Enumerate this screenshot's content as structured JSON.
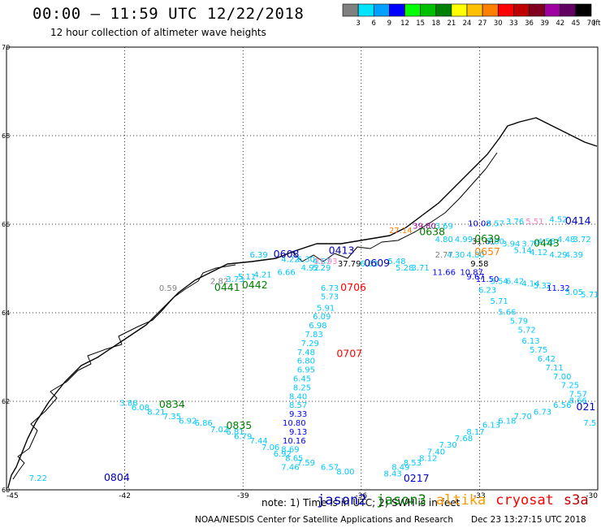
{
  "header": {
    "title": "00:00 — 11:59 UTC 12/22/2018",
    "subtitle": "12 hour collection of altimeter wave heights"
  },
  "colorbar": {
    "unit": "(ft)",
    "bins": [
      {
        "label": "3",
        "color": "#808080"
      },
      {
        "label": "6",
        "color": "#00e5ff"
      },
      {
        "label": "9",
        "color": "#00a0ff"
      },
      {
        "label": "12",
        "color": "#0000ff"
      },
      {
        "label": "15",
        "color": "#00ff00"
      },
      {
        "label": "18",
        "color": "#00c000"
      },
      {
        "label": "21",
        "color": "#008000"
      },
      {
        "label": "24",
        "color": "#ffff00"
      },
      {
        "label": "27",
        "color": "#ffc000"
      },
      {
        "label": "30",
        "color": "#ff8000"
      },
      {
        "label": "33",
        "color": "#ff0000"
      },
      {
        "label": "36",
        "color": "#c00000"
      },
      {
        "label": "39",
        "color": "#800020"
      },
      {
        "label": "42",
        "color": "#a000a0"
      },
      {
        "label": "45",
        "color": "#600060"
      },
      {
        "label": "70",
        "color": "#000000"
      }
    ]
  },
  "chart_data": {
    "type": "scatter",
    "title": "00:00 — 11:59 UTC 12/22/2018",
    "subtitle": "12 hour collection of altimeter wave heights",
    "xlim": [
      -45,
      -30
    ],
    "ylim": [
      60,
      70
    ],
    "x_ticks": [
      "-45",
      "-42",
      "-39",
      "-36",
      "-33",
      "-30"
    ],
    "y_ticks": [
      "60",
      "62",
      "64",
      "66",
      "68",
      "70"
    ],
    "grid": true,
    "points": [
      {
        "text": "7.22",
        "lon": -44.2,
        "lat": 60.2,
        "color": "#00c8ff"
      },
      {
        "text": "3.86",
        "lon": -41.9,
        "lat": 61.9,
        "color": "#00c8ff"
      },
      {
        "text": "6.08",
        "lon": -41.6,
        "lat": 61.8,
        "color": "#00c8ff"
      },
      {
        "text": "8.21",
        "lon": -41.2,
        "lat": 61.7,
        "color": "#00c8ff"
      },
      {
        "text": "7.35",
        "lon": -40.8,
        "lat": 61.6,
        "color": "#00c8ff"
      },
      {
        "text": "6.92",
        "lon": -40.4,
        "lat": 61.5,
        "color": "#00c8ff"
      },
      {
        "text": "6.86",
        "lon": -40.0,
        "lat": 61.45,
        "color": "#00c8ff"
      },
      {
        "text": "7.02",
        "lon": -39.6,
        "lat": 61.3,
        "color": "#00c8ff"
      },
      {
        "text": "6.81",
        "lon": -39.2,
        "lat": 61.25,
        "color": "#00c8ff"
      },
      {
        "text": "6.79",
        "lon": -39.0,
        "lat": 61.15,
        "color": "#00c8ff"
      },
      {
        "text": "7.44",
        "lon": -38.6,
        "lat": 61.05,
        "color": "#00c8ff"
      },
      {
        "text": "7.06",
        "lon": -38.3,
        "lat": 60.9,
        "color": "#00c8ff"
      },
      {
        "text": "6.92",
        "lon": -38.0,
        "lat": 60.75,
        "color": "#00c8ff"
      },
      {
        "text": "8.65",
        "lon": -37.7,
        "lat": 60.65,
        "color": "#00c8ff"
      },
      {
        "text": "7.59",
        "lon": -37.4,
        "lat": 60.55,
        "color": "#00c8ff"
      },
      {
        "text": "7.46",
        "lon": -37.8,
        "lat": 60.45,
        "color": "#00c8ff"
      },
      {
        "text": "6.57",
        "lon": -36.8,
        "lat": 60.45,
        "color": "#00c8ff"
      },
      {
        "text": "8.00",
        "lon": -36.4,
        "lat": 60.35,
        "color": "#00c8ff"
      },
      {
        "text": "6.39",
        "lon": -38.6,
        "lat": 65.25,
        "color": "#00c8ff"
      },
      {
        "text": "6.73",
        "lon": -36.8,
        "lat": 64.5,
        "color": "#00c8ff"
      },
      {
        "text": "5.73",
        "lon": -36.8,
        "lat": 64.3,
        "color": "#00c8ff"
      },
      {
        "text": "5.91",
        "lon": -36.9,
        "lat": 64.05,
        "color": "#00c8ff"
      },
      {
        "text": "6.09",
        "lon": -37.0,
        "lat": 63.85,
        "color": "#00c8ff"
      },
      {
        "text": "6.98",
        "lon": -37.1,
        "lat": 63.65,
        "color": "#00c8ff"
      },
      {
        "text": "7.83",
        "lon": -37.2,
        "lat": 63.45,
        "color": "#00c8ff"
      },
      {
        "text": "7.29",
        "lon": -37.3,
        "lat": 63.25,
        "color": "#00c8ff"
      },
      {
        "text": "7.48",
        "lon": -37.4,
        "lat": 63.05,
        "color": "#00c8ff"
      },
      {
        "text": "6.80",
        "lon": -37.4,
        "lat": 62.85,
        "color": "#00c8ff"
      },
      {
        "text": "6.95",
        "lon": -37.4,
        "lat": 62.65,
        "color": "#00c8ff"
      },
      {
        "text": "6.45",
        "lon": -37.5,
        "lat": 62.45,
        "color": "#00c8ff"
      },
      {
        "text": "8.25",
        "lon": -37.5,
        "lat": 62.25,
        "color": "#00c8ff"
      },
      {
        "text": "8.40",
        "lon": -37.6,
        "lat": 62.05,
        "color": "#00c8ff"
      },
      {
        "text": "8.57",
        "lon": -37.6,
        "lat": 61.85,
        "color": "#00c8ff"
      },
      {
        "text": "9.33",
        "lon": -37.6,
        "lat": 61.65,
        "color": "#0000ff"
      },
      {
        "text": "10.80",
        "lon": -37.7,
        "lat": 61.45,
        "color": "#0000ff"
      },
      {
        "text": "9.13",
        "lon": -37.6,
        "lat": 61.25,
        "color": "#0000ff"
      },
      {
        "text": "10.16",
        "lon": -37.7,
        "lat": 61.05,
        "color": "#0000ff"
      },
      {
        "text": "8.69",
        "lon": -37.8,
        "lat": 60.85,
        "color": "#00c8ff"
      },
      {
        "text": "4.22",
        "lon": -37.8,
        "lat": 65.15,
        "color": "#00c8ff"
      },
      {
        "text": "6.30",
        "lon": -37.4,
        "lat": 65.15,
        "color": "#00c8ff"
      },
      {
        "text": "4.67",
        "lon": -37.0,
        "lat": 65.1,
        "color": "#00c8ff"
      },
      {
        "text": "6.66",
        "lon": -37.9,
        "lat": 64.85,
        "color": "#00c8ff"
      },
      {
        "text": "4.21",
        "lon": -38.5,
        "lat": 64.8,
        "color": "#00c8ff"
      },
      {
        "text": "5.11",
        "lon": -38.9,
        "lat": 64.75,
        "color": "#00c8ff"
      },
      {
        "text": "3.73",
        "lon": -39.2,
        "lat": 64.7,
        "color": "#00c8ff"
      },
      {
        "text": "2.82",
        "lon": -39.6,
        "lat": 64.65,
        "color": "#808080"
      },
      {
        "text": "0.59",
        "lon": -40.9,
        "lat": 64.5,
        "color": "#808080"
      },
      {
        "text": "4.92",
        "lon": -37.3,
        "lat": 64.95,
        "color": "#00c8ff"
      },
      {
        "text": "5.29",
        "lon": -37.0,
        "lat": 64.95,
        "color": "#00c8ff"
      },
      {
        "text": "31.93",
        "lon": -36.9,
        "lat": 65.1,
        "color": "#ff80c0"
      },
      {
        "text": "37.79",
        "lon": -36.3,
        "lat": 65.05,
        "color": "#000000"
      },
      {
        "text": "6.63",
        "lon": -35.8,
        "lat": 65.05,
        "color": "#00c8ff"
      },
      {
        "text": "5.48",
        "lon": -35.1,
        "lat": 65.1,
        "color": "#00c8ff"
      },
      {
        "text": "5.28",
        "lon": -34.9,
        "lat": 64.95,
        "color": "#00c8ff"
      },
      {
        "text": "3.71",
        "lon": -34.5,
        "lat": 64.95,
        "color": "#00c8ff"
      },
      {
        "text": "27.14",
        "lon": -35.0,
        "lat": 65.8,
        "color": "#ff8000"
      },
      {
        "text": "39.80",
        "lon": -34.4,
        "lat": 65.9,
        "color": "#a000a0"
      },
      {
        "text": "3.69",
        "lon": -33.9,
        "lat": 65.9,
        "color": "#00c8ff"
      },
      {
        "text": "10.08",
        "lon": -33.0,
        "lat": 65.95,
        "color": "#0000ff"
      },
      {
        "text": "5.57",
        "lon": -32.6,
        "lat": 65.95,
        "color": "#00c8ff"
      },
      {
        "text": "3.76",
        "lon": -32.1,
        "lat": 66.0,
        "color": "#00c8ff"
      },
      {
        "text": "5.51",
        "lon": -31.6,
        "lat": 66.0,
        "color": "#ff80c0"
      },
      {
        "text": "4.52",
        "lon": -31.0,
        "lat": 66.05,
        "color": "#00c8ff"
      },
      {
        "text": "4.80",
        "lon": -33.9,
        "lat": 65.6,
        "color": "#00c8ff"
      },
      {
        "text": "4.99",
        "lon": -33.4,
        "lat": 65.6,
        "color": "#00c8ff"
      },
      {
        "text": "31.61",
        "lon": -32.9,
        "lat": 65.55,
        "color": "#000000"
      },
      {
        "text": "2.77",
        "lon": -33.9,
        "lat": 65.25,
        "color": "#808080"
      },
      {
        "text": "4.30",
        "lon": -33.6,
        "lat": 65.25,
        "color": "#00c8ff"
      },
      {
        "text": "4.80",
        "lon": -33.1,
        "lat": 65.25,
        "color": "#00c8ff"
      },
      {
        "text": "3.80",
        "lon": -32.6,
        "lat": 65.55,
        "color": "#00c8ff"
      },
      {
        "text": "3.94",
        "lon": -32.2,
        "lat": 65.5,
        "color": "#00c8ff"
      },
      {
        "text": "3.79",
        "lon": -31.7,
        "lat": 65.5,
        "color": "#00c8ff"
      },
      {
        "text": "4.58",
        "lon": -31.3,
        "lat": 65.55,
        "color": "#00c8ff"
      },
      {
        "text": "4.48",
        "lon": -30.8,
        "lat": 65.6,
        "color": "#00c8ff"
      },
      {
        "text": "3.72",
        "lon": -30.4,
        "lat": 65.6,
        "color": "#00c8ff"
      },
      {
        "text": "5.14",
        "lon": -31.9,
        "lat": 65.35,
        "color": "#00c8ff"
      },
      {
        "text": "4.12",
        "lon": -31.5,
        "lat": 65.3,
        "color": "#00c8ff"
      },
      {
        "text": "4.29",
        "lon": -31.0,
        "lat": 65.25,
        "color": "#00c8ff"
      },
      {
        "text": "4.39",
        "lon": -30.6,
        "lat": 65.25,
        "color": "#00c8ff"
      },
      {
        "text": "9.58",
        "lon": -33.0,
        "lat": 65.05,
        "color": "#000000"
      },
      {
        "text": "11.66",
        "lon": -33.9,
        "lat": 64.85,
        "color": "#0000ff"
      },
      {
        "text": "10.87",
        "lon": -33.2,
        "lat": 64.85,
        "color": "#0000ff"
      },
      {
        "text": "9.67",
        "lon": -33.1,
        "lat": 64.75,
        "color": "#0000ff"
      },
      {
        "text": "11.50",
        "lon": -32.8,
        "lat": 64.7,
        "color": "#0000ff"
      },
      {
        "text": "5.54",
        "lon": -32.5,
        "lat": 64.65,
        "color": "#00c8ff"
      },
      {
        "text": "6.42",
        "lon": -32.1,
        "lat": 64.65,
        "color": "#00c8ff"
      },
      {
        "text": "4.14",
        "lon": -31.7,
        "lat": 64.6,
        "color": "#00c8ff"
      },
      {
        "text": "5.32",
        "lon": -31.4,
        "lat": 64.55,
        "color": "#00c8ff"
      },
      {
        "text": "11.32",
        "lon": -31.0,
        "lat": 64.5,
        "color": "#0000ff"
      },
      {
        "text": "5.05",
        "lon": -30.6,
        "lat": 64.4,
        "color": "#00c8ff"
      },
      {
        "text": "5.71",
        "lon": -30.2,
        "lat": 64.35,
        "color": "#00c8ff"
      },
      {
        "text": "6.23",
        "lon": -32.8,
        "lat": 64.45,
        "color": "#00c8ff"
      },
      {
        "text": "5.71",
        "lon": -32.5,
        "lat": 64.2,
        "color": "#00c8ff"
      },
      {
        "text": "5.66",
        "lon": -32.3,
        "lat": 63.95,
        "color": "#00c8ff"
      },
      {
        "text": "5.79",
        "lon": -32.0,
        "lat": 63.75,
        "color": "#00c8ff"
      },
      {
        "text": "5.72",
        "lon": -31.8,
        "lat": 63.55,
        "color": "#00c8ff"
      },
      {
        "text": "6.13",
        "lon": -31.7,
        "lat": 63.3,
        "color": "#00c8ff"
      },
      {
        "text": "5.75",
        "lon": -31.5,
        "lat": 63.1,
        "color": "#00c8ff"
      },
      {
        "text": "6.42",
        "lon": -31.3,
        "lat": 62.9,
        "color": "#00c8ff"
      },
      {
        "text": "7.11",
        "lon": -31.1,
        "lat": 62.7,
        "color": "#00c8ff"
      },
      {
        "text": "7.00",
        "lon": -30.9,
        "lat": 62.5,
        "color": "#00c8ff"
      },
      {
        "text": "7.25",
        "lon": -30.7,
        "lat": 62.3,
        "color": "#00c8ff"
      },
      {
        "text": "7.57",
        "lon": -30.5,
        "lat": 62.1,
        "color": "#00c8ff"
      },
      {
        "text": "8.66",
        "lon": -30.5,
        "lat": 61.95,
        "color": "#00c8ff"
      },
      {
        "text": "6.56",
        "lon": -30.9,
        "lat": 61.85,
        "color": "#00c8ff"
      },
      {
        "text": "7.5",
        "lon": -30.2,
        "lat": 61.45,
        "color": "#00c8ff"
      },
      {
        "text": "6.73",
        "lon": -31.4,
        "lat": 61.7,
        "color": "#00c8ff"
      },
      {
        "text": "7.70",
        "lon": -31.9,
        "lat": 61.6,
        "color": "#00c8ff"
      },
      {
        "text": "6.18",
        "lon": -32.3,
        "lat": 61.5,
        "color": "#00c8ff"
      },
      {
        "text": "6.13",
        "lon": -32.7,
        "lat": 61.4,
        "color": "#00c8ff"
      },
      {
        "text": "8.17",
        "lon": -33.1,
        "lat": 61.25,
        "color": "#00c8ff"
      },
      {
        "text": "7.68",
        "lon": -33.4,
        "lat": 61.1,
        "color": "#00c8ff"
      },
      {
        "text": "7.30",
        "lon": -33.8,
        "lat": 60.95,
        "color": "#00c8ff"
      },
      {
        "text": "7.40",
        "lon": -34.1,
        "lat": 60.8,
        "color": "#00c8ff"
      },
      {
        "text": "8.12",
        "lon": -34.3,
        "lat": 60.65,
        "color": "#00c8ff"
      },
      {
        "text": "8.53",
        "lon": -34.7,
        "lat": 60.55,
        "color": "#00c8ff"
      },
      {
        "text": "8.49",
        "lon": -35.0,
        "lat": 60.45,
        "color": "#00c8ff"
      },
      {
        "text": "8.43",
        "lon": -35.2,
        "lat": 60.3,
        "color": "#00c8ff"
      }
    ],
    "time_labels": [
      {
        "text": "0804",
        "lon": -42.2,
        "lat": 60.2,
        "color": "#0000c0"
      },
      {
        "text": "0834",
        "lon": -40.8,
        "lat": 61.85,
        "color": "#008000"
      },
      {
        "text": "0835",
        "lon": -39.1,
        "lat": 61.38,
        "color": "#008000"
      },
      {
        "text": "0441",
        "lon": -39.4,
        "lat": 64.5,
        "color": "#008000"
      },
      {
        "text": "0442",
        "lon": -38.7,
        "lat": 64.55,
        "color": "#008000"
      },
      {
        "text": "0608",
        "lon": -37.9,
        "lat": 65.25,
        "color": "#0000c0"
      },
      {
        "text": "0413",
        "lon": -36.5,
        "lat": 65.33,
        "color": "#0000c0"
      },
      {
        "text": "0609",
        "lon": -35.6,
        "lat": 65.05,
        "color": "#0000c0"
      },
      {
        "text": "0706",
        "lon": -36.2,
        "lat": 64.5,
        "color": "#ff0000"
      },
      {
        "text": "0707",
        "lon": -36.3,
        "lat": 63.0,
        "color": "#ff0000"
      },
      {
        "text": "0638",
        "lon": -34.2,
        "lat": 65.75,
        "color": "#008000"
      },
      {
        "text": "0639",
        "lon": -32.8,
        "lat": 65.6,
        "color": "#008000"
      },
      {
        "text": "0657",
        "lon": -32.8,
        "lat": 65.3,
        "color": "#ff8000"
      },
      {
        "text": "0443",
        "lon": -31.3,
        "lat": 65.5,
        "color": "#008000"
      },
      {
        "text": "0414",
        "lon": -30.5,
        "lat": 66.0,
        "color": "#0000c0"
      },
      {
        "text": "021",
        "lon": -30.3,
        "lat": 61.8,
        "color": "#0000c0"
      },
      {
        "text": "0217",
        "lon": -34.6,
        "lat": 60.18,
        "color": "#0000c0"
      }
    ]
  },
  "footer": {
    "note": "note: 1) Time is in UTC; 2) SWH is in feet",
    "satellites": [
      {
        "name": "jason2",
        "color": "#0000c0"
      },
      {
        "name": "jason3",
        "color": "#008000"
      },
      {
        "name": "altika",
        "color": "#ff9900"
      },
      {
        "name": "cryosat",
        "color": "#ff0000"
      },
      {
        "name": "s3a",
        "color": "#c00000"
      }
    ],
    "credit": "NOAA/NESDIS Center for Satellite Applications and Research",
    "timestamp": "Dec 23 13:27:15 UTC 2018"
  }
}
